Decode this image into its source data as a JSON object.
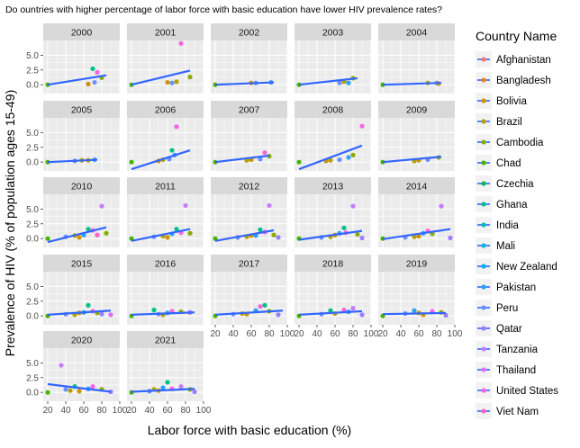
{
  "chart_data": {
    "type": "scatter",
    "title": "Do ountries with higher percentage of labor force with basic education have lower HIV prevalence rates?",
    "xlabel": "Labor force with basic education (%)",
    "ylabel": "Prevalence of HIV (% of population ages 15-49)",
    "xlim": [
      15,
      100
    ],
    "ylim": [
      -1.5,
      7.5
    ],
    "x_ticks": [
      "20",
      "40",
      "60",
      "80",
      "100"
    ],
    "y_ticks": [
      "0.0",
      "2.5",
      "5.0"
    ],
    "grid": true,
    "legend_position": "right",
    "legend_title": "Country Name",
    "series": [
      {
        "name": "Afghanistan",
        "color": "#F8766D"
      },
      {
        "name": "Bangladesh",
        "color": "#E7851E"
      },
      {
        "name": "Bolivia",
        "color": "#D09400"
      },
      {
        "name": "Brazil",
        "color": "#B2A100"
      },
      {
        "name": "Cambodia",
        "color": "#89AC00"
      },
      {
        "name": "Chad",
        "color": "#45B500"
      },
      {
        "name": "Czechia",
        "color": "#00BC51"
      },
      {
        "name": "Ghana",
        "color": "#00C087"
      },
      {
        "name": "India",
        "color": "#00C0B2"
      },
      {
        "name": "Mali",
        "color": "#00BCD6"
      },
      {
        "name": "New Zealand",
        "color": "#00B3F2"
      },
      {
        "name": "Pakistan",
        "color": "#29A3FF"
      },
      {
        "name": "Peru",
        "color": "#6C91FF"
      },
      {
        "name": "Qatar",
        "color": "#9C7DFF"
      },
      {
        "name": "Tanzania",
        "color": "#C77CFF"
      },
      {
        "name": "Thailand",
        "color": "#E36EF6"
      },
      {
        "name": "United States",
        "color": "#F564E3"
      },
      {
        "name": "Viet Nam",
        "color": "#FF61C3"
      }
    ],
    "trend_color": "#3366FF",
    "facets": [
      {
        "label": "2000",
        "trend": [
          [
            20,
            0.0
          ],
          [
            85,
            1.6
          ]
        ],
        "points": [
          [
            20,
            0.0,
            5
          ],
          [
            65,
            0.1,
            2
          ],
          [
            70,
            2.7,
            7
          ],
          [
            75,
            2.1,
            16
          ],
          [
            80,
            1.2,
            4
          ],
          [
            72,
            0.4,
            12
          ]
        ]
      },
      {
        "label": "2001",
        "trend": [
          [
            20,
            0.0
          ],
          [
            85,
            2.4
          ]
        ],
        "points": [
          [
            20,
            0.0,
            5
          ],
          [
            60,
            0.4,
            2
          ],
          [
            65,
            0.3,
            12
          ],
          [
            70,
            0.5,
            3
          ],
          [
            75,
            7.0,
            16
          ],
          [
            85,
            1.3,
            4
          ]
        ]
      },
      {
        "label": "2002",
        "trend": [
          [
            20,
            0.0
          ],
          [
            85,
            0.4
          ]
        ],
        "points": [
          [
            20,
            0.0,
            5
          ],
          [
            60,
            0.3,
            2
          ],
          [
            65,
            0.3,
            12
          ],
          [
            82,
            0.4,
            11
          ]
        ]
      },
      {
        "label": "2003",
        "trend": [
          [
            20,
            0.0
          ],
          [
            85,
            1.1
          ]
        ],
        "points": [
          [
            20,
            0.0,
            5
          ],
          [
            65,
            0.3,
            12
          ],
          [
            70,
            0.5,
            3
          ],
          [
            80,
            1.1,
            4
          ],
          [
            75,
            0.3,
            11
          ]
        ]
      },
      {
        "label": "2004",
        "trend": [
          [
            20,
            0.0
          ],
          [
            85,
            0.3
          ]
        ],
        "points": [
          [
            20,
            0.0,
            5
          ],
          [
            70,
            0.3,
            3
          ],
          [
            80,
            0.3,
            12
          ],
          [
            82,
            0.2,
            2
          ]
        ]
      },
      {
        "label": "2005",
        "trend": [
          [
            20,
            0.0
          ],
          [
            75,
            0.4
          ]
        ],
        "points": [
          [
            20,
            0.0,
            5
          ],
          [
            50,
            0.2,
            12
          ],
          [
            58,
            0.3,
            3
          ],
          [
            65,
            0.3,
            2
          ],
          [
            72,
            0.4,
            11
          ]
        ]
      },
      {
        "label": "2006",
        "trend": [
          [
            20,
            -1.2
          ],
          [
            85,
            2.0
          ]
        ],
        "points": [
          [
            20,
            0.0,
            5
          ],
          [
            50,
            0.2,
            2
          ],
          [
            55,
            0.4,
            3
          ],
          [
            62,
            0.5,
            12
          ],
          [
            65,
            2.0,
            7
          ],
          [
            70,
            6.0,
            16
          ],
          [
            68,
            1.2,
            11
          ]
        ]
      },
      {
        "label": "2007",
        "trend": [
          [
            20,
            0.0
          ],
          [
            80,
            1.1
          ]
        ],
        "points": [
          [
            20,
            0.0,
            5
          ],
          [
            55,
            0.3,
            3
          ],
          [
            60,
            0.4,
            2
          ],
          [
            70,
            0.5,
            12
          ],
          [
            75,
            1.6,
            16
          ],
          [
            80,
            1.0,
            4
          ]
        ]
      },
      {
        "label": "2008",
        "trend": [
          [
            20,
            -1.2
          ],
          [
            90,
            2.8
          ]
        ],
        "points": [
          [
            20,
            0.0,
            5
          ],
          [
            50,
            0.2,
            2
          ],
          [
            55,
            0.3,
            3
          ],
          [
            65,
            0.4,
            12
          ],
          [
            75,
            0.8,
            11
          ],
          [
            80,
            1.2,
            4
          ],
          [
            90,
            6.1,
            16
          ]
        ]
      },
      {
        "label": "2009",
        "trend": [
          [
            20,
            0.0
          ],
          [
            85,
            0.9
          ]
        ],
        "points": [
          [
            20,
            0.0,
            5
          ],
          [
            55,
            0.2,
            3
          ],
          [
            60,
            0.3,
            2
          ],
          [
            70,
            0.4,
            12
          ],
          [
            82,
            0.8,
            4
          ]
        ]
      },
      {
        "label": "2010",
        "trend": [
          [
            20,
            -0.6
          ],
          [
            85,
            1.9
          ]
        ],
        "points": [
          [
            20,
            0.0,
            5
          ],
          [
            40,
            0.3,
            12
          ],
          [
            50,
            0.5,
            3
          ],
          [
            55,
            0.2,
            2
          ],
          [
            60,
            0.6,
            11
          ],
          [
            65,
            1.6,
            7
          ],
          [
            70,
            1.4,
            16
          ],
          [
            75,
            0.6,
            17
          ],
          [
            80,
            5.5,
            14
          ],
          [
            85,
            0.9,
            4
          ]
        ]
      },
      {
        "label": "2011",
        "trend": [
          [
            20,
            -0.4
          ],
          [
            85,
            1.6
          ]
        ],
        "points": [
          [
            20,
            0.0,
            5
          ],
          [
            45,
            0.3,
            12
          ],
          [
            55,
            0.4,
            3
          ],
          [
            60,
            0.2,
            2
          ],
          [
            65,
            0.8,
            11
          ],
          [
            70,
            1.6,
            7
          ],
          [
            75,
            1.0,
            16
          ],
          [
            80,
            5.6,
            14
          ],
          [
            85,
            0.9,
            4
          ]
        ]
      },
      {
        "label": "2012",
        "trend": [
          [
            20,
            -0.4
          ],
          [
            85,
            1.4
          ]
        ],
        "points": [
          [
            20,
            0.0,
            5
          ],
          [
            45,
            0.2,
            12
          ],
          [
            55,
            0.3,
            3
          ],
          [
            60,
            0.5,
            2
          ],
          [
            65,
            0.5,
            11
          ],
          [
            70,
            1.5,
            7
          ],
          [
            75,
            1.1,
            16
          ],
          [
            80,
            5.6,
            14
          ],
          [
            85,
            0.6,
            4
          ],
          [
            90,
            0.2,
            13
          ]
        ]
      },
      {
        "label": "2013",
        "trend": [
          [
            20,
            -0.2
          ],
          [
            90,
            1.3
          ]
        ],
        "points": [
          [
            20,
            0.0,
            5
          ],
          [
            45,
            0.2,
            12
          ],
          [
            55,
            0.3,
            3
          ],
          [
            60,
            0.6,
            2
          ],
          [
            65,
            0.9,
            11
          ],
          [
            70,
            1.8,
            7
          ],
          [
            72,
            1.0,
            16
          ],
          [
            80,
            5.5,
            14
          ],
          [
            85,
            0.7,
            4
          ],
          [
            90,
            0.1,
            13
          ]
        ]
      },
      {
        "label": "2014",
        "trend": [
          [
            20,
            -0.1
          ],
          [
            95,
            1.6
          ]
        ],
        "points": [
          [
            20,
            0.0,
            5
          ],
          [
            45,
            0.2,
            12
          ],
          [
            55,
            0.3,
            3
          ],
          [
            60,
            0.4,
            2
          ],
          [
            65,
            0.9,
            11
          ],
          [
            70,
            1.3,
            16
          ],
          [
            75,
            0.8,
            4
          ],
          [
            85,
            5.5,
            14
          ],
          [
            95,
            0.1,
            13
          ]
        ]
      },
      {
        "label": "2015",
        "trend": [
          [
            20,
            0.2
          ],
          [
            90,
            0.9
          ]
        ],
        "points": [
          [
            20,
            0.0,
            5
          ],
          [
            40,
            0.3,
            12
          ],
          [
            50,
            0.2,
            3
          ],
          [
            55,
            0.5,
            2
          ],
          [
            60,
            0.6,
            11
          ],
          [
            65,
            1.8,
            7
          ],
          [
            70,
            0.8,
            16
          ],
          [
            75,
            0.5,
            4
          ],
          [
            80,
            0.3,
            13
          ],
          [
            90,
            0.2,
            15
          ]
        ]
      },
      {
        "label": "2016",
        "trend": [
          [
            20,
            0.2
          ],
          [
            90,
            0.6
          ]
        ],
        "points": [
          [
            20,
            0.0,
            5
          ],
          [
            45,
            1.0,
            7
          ],
          [
            50,
            0.3,
            12
          ],
          [
            55,
            0.2,
            3
          ],
          [
            60,
            0.5,
            11
          ],
          [
            65,
            0.8,
            16
          ],
          [
            75,
            0.7,
            4
          ],
          [
            85,
            0.6,
            13
          ]
        ]
      },
      {
        "label": "2017",
        "trend": [
          [
            20,
            0.2
          ],
          [
            95,
            0.9
          ]
        ],
        "points": [
          [
            20,
            0.0,
            5
          ],
          [
            40,
            0.3,
            12
          ],
          [
            50,
            0.4,
            3
          ],
          [
            55,
            0.3,
            2
          ],
          [
            65,
            0.9,
            11
          ],
          [
            70,
            1.6,
            16
          ],
          [
            75,
            1.8,
            7
          ],
          [
            80,
            0.8,
            4
          ],
          [
            90,
            0.2,
            13
          ]
        ]
      },
      {
        "label": "2018",
        "trend": [
          [
            20,
            0.2
          ],
          [
            90,
            0.8
          ]
        ],
        "points": [
          [
            20,
            0.0,
            5
          ],
          [
            45,
            0.3,
            12
          ],
          [
            55,
            0.9,
            7
          ],
          [
            60,
            0.4,
            3
          ],
          [
            70,
            1.0,
            16
          ],
          [
            75,
            0.7,
            11
          ],
          [
            80,
            1.3,
            14
          ],
          [
            90,
            0.2,
            13
          ]
        ]
      },
      {
        "label": "2019",
        "trend": [
          [
            20,
            0.3
          ],
          [
            90,
            0.5
          ]
        ],
        "points": [
          [
            20,
            0.0,
            5
          ],
          [
            45,
            0.4,
            12
          ],
          [
            55,
            0.9,
            11
          ],
          [
            60,
            0.5,
            3
          ],
          [
            65,
            0.2,
            2
          ],
          [
            75,
            0.8,
            16
          ],
          [
            85,
            0.6,
            4
          ],
          [
            90,
            0.1,
            13
          ]
        ]
      },
      {
        "label": "2020",
        "trend": [
          [
            20,
            1.4
          ],
          [
            90,
            0.1
          ]
        ],
        "points": [
          [
            20,
            0.0,
            5
          ],
          [
            35,
            4.6,
            14
          ],
          [
            40,
            0.5,
            12
          ],
          [
            45,
            0.3,
            3
          ],
          [
            50,
            1.0,
            7
          ],
          [
            55,
            0.2,
            2
          ],
          [
            65,
            0.6,
            11
          ],
          [
            70,
            1.0,
            16
          ],
          [
            80,
            0.5,
            4
          ],
          [
            90,
            0.1,
            13
          ]
        ]
      },
      {
        "label": "2021",
        "trend": [
          [
            20,
            0.1
          ],
          [
            90,
            0.6
          ]
        ],
        "points": [
          [
            20,
            0.0,
            5
          ],
          [
            40,
            0.2,
            12
          ],
          [
            45,
            0.5,
            3
          ],
          [
            50,
            0.3,
            2
          ],
          [
            55,
            0.8,
            11
          ],
          [
            60,
            1.7,
            7
          ],
          [
            65,
            0.6,
            16
          ],
          [
            75,
            1.0,
            14
          ],
          [
            85,
            0.5,
            4
          ],
          [
            90,
            0.1,
            13
          ]
        ]
      }
    ]
  }
}
